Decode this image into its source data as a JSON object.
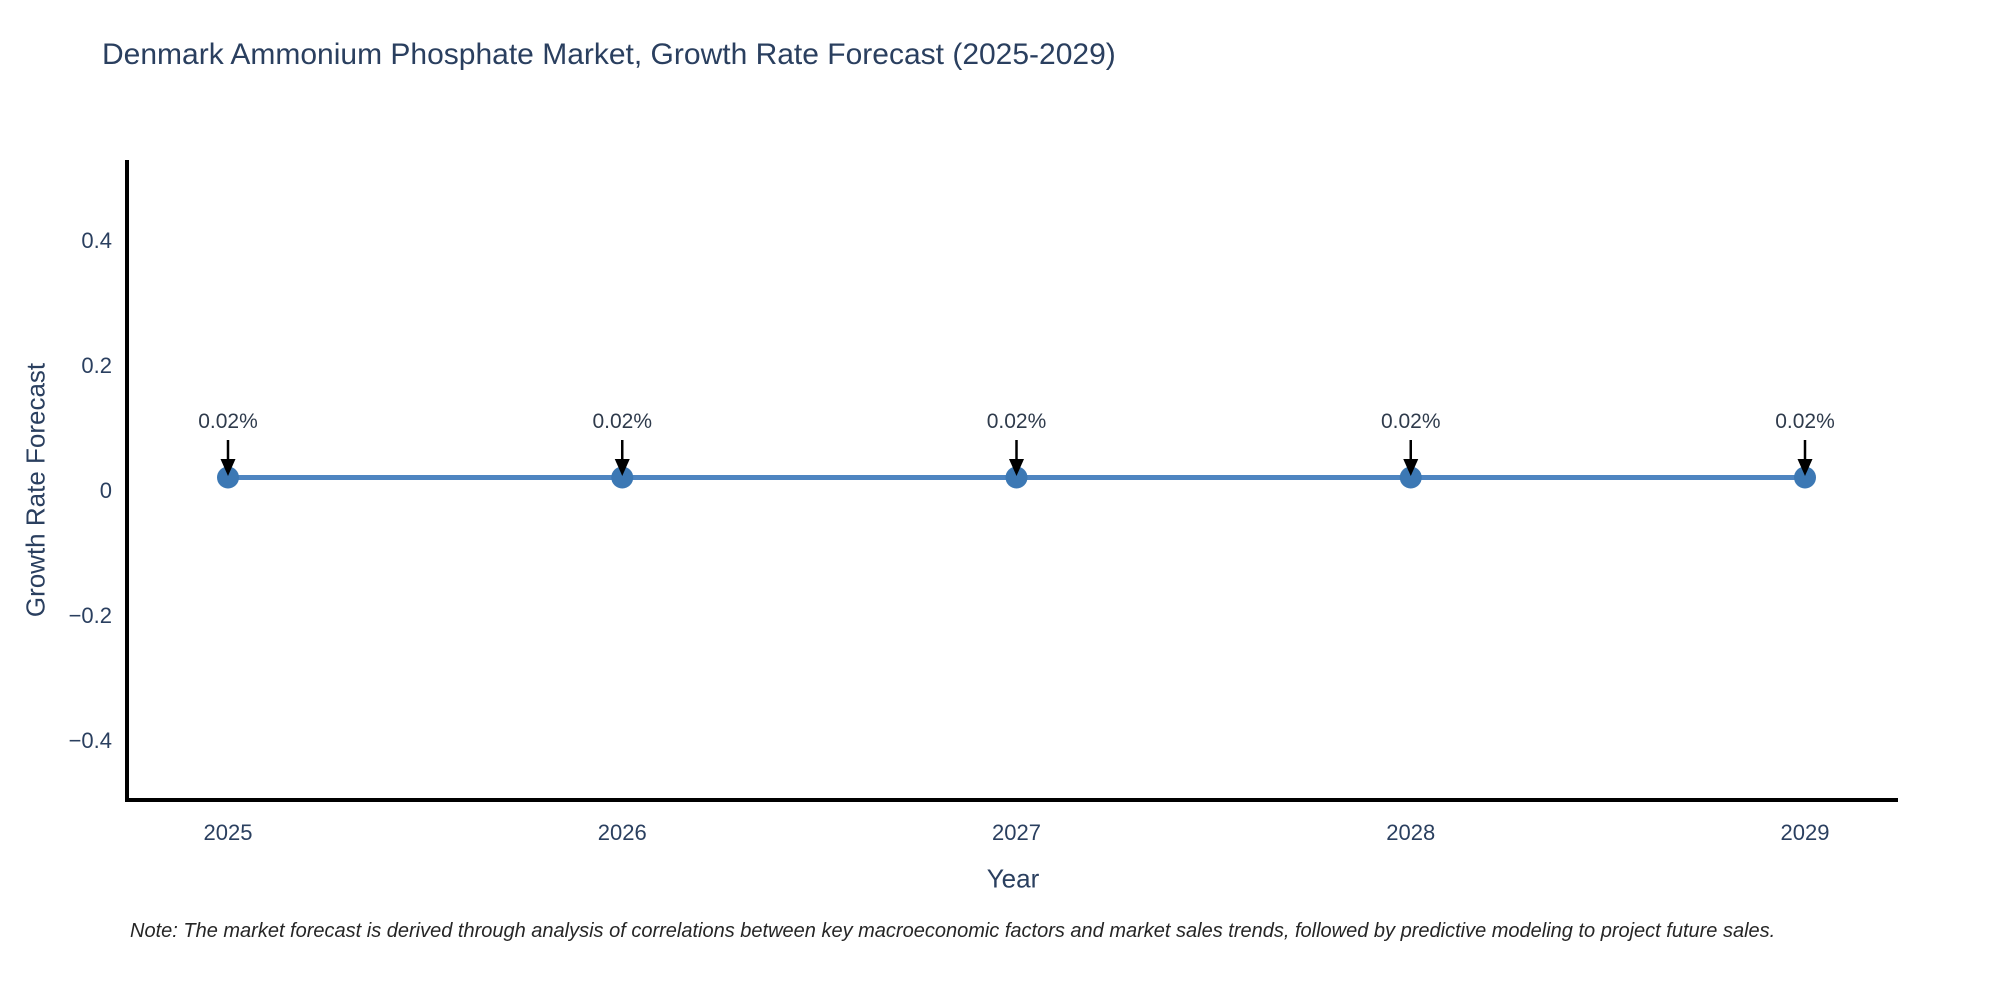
{
  "chart_data": {
    "type": "line",
    "title": "Denmark Ammonium Phosphate Market, Growth Rate Forecast (2025-2029)",
    "xlabel": "Year",
    "ylabel": "Growth Rate Forecast",
    "x": [
      2025,
      2026,
      2027,
      2028,
      2029
    ],
    "xtick_labels": [
      "2025",
      "2026",
      "2027",
      "2028",
      "2029"
    ],
    "series": [
      {
        "name": "Growth Rate Forecast",
        "values": [
          0.02,
          0.02,
          0.02,
          0.02,
          0.02
        ]
      }
    ],
    "point_labels": [
      "0.02%",
      "0.02%",
      "0.02%",
      "0.02%",
      "0.02%"
    ],
    "yticks": [
      0.4,
      0.2,
      0,
      -0.2,
      -0.4
    ],
    "ytick_labels": [
      "0.4",
      "0.2",
      "0",
      "−0.2",
      "−0.4"
    ],
    "ylim": [
      -0.5,
      0.52
    ],
    "grid": false,
    "legend": "none",
    "note": "Note: The market forecast is derived through analysis of correlations between key macroeconomic factors and market sales trends, followed by predictive modeling to project future sales.",
    "colors": {
      "line": "#4e85c1",
      "marker": "#3c78b4",
      "axis": "#000000",
      "title_text": "#2a3f5f",
      "tick_text": "#2a3f5f",
      "annotation_text": "#2f3b4c",
      "arrow": "#000000",
      "note_text": "#262626",
      "background": "#ffffff"
    }
  }
}
